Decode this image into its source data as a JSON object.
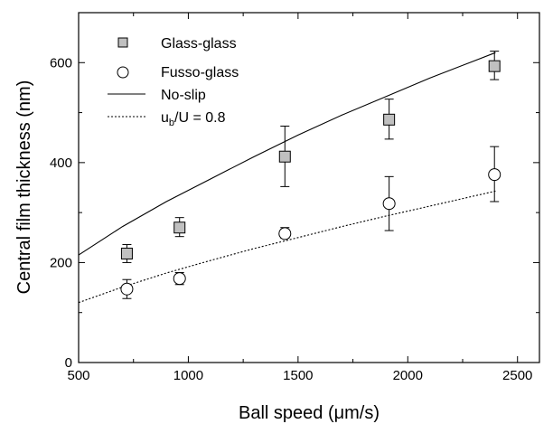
{
  "chart_data": {
    "type": "scatter",
    "xlabel": "Ball speed (μm/s)",
    "ylabel": "Central film thickness (nm)",
    "xlim": [
      500,
      2600
    ],
    "ylim": [
      0,
      700
    ],
    "x_ticks": [
      "500",
      "1000",
      "1500",
      "2000",
      "2500"
    ],
    "y_ticks": [
      "0",
      "200",
      "400",
      "600"
    ],
    "grid": false,
    "legend_position": "top-left",
    "series": [
      {
        "name": "Glass-glass",
        "kind": "scatter",
        "marker": "square",
        "color": "#c0c0c0",
        "points": [
          {
            "x": 720,
            "y": 218,
            "err_low": 200,
            "err_high": 236
          },
          {
            "x": 960,
            "y": 270,
            "err_low": 252,
            "err_high": 290
          },
          {
            "x": 1440,
            "y": 412,
            "err_low": 352,
            "err_high": 473
          },
          {
            "x": 1915,
            "y": 486,
            "err_low": 447,
            "err_high": 527
          },
          {
            "x": 2395,
            "y": 593,
            "err_low": 566,
            "err_high": 623
          }
        ]
      },
      {
        "name": "Fusso-glass",
        "kind": "scatter",
        "marker": "circle",
        "color": "#ffffff",
        "points": [
          {
            "x": 720,
            "y": 147,
            "err_low": 128,
            "err_high": 166
          },
          {
            "x": 960,
            "y": 168,
            "err_low": 156,
            "err_high": 180
          },
          {
            "x": 1440,
            "y": 258,
            "err_low": 249,
            "err_high": 270
          },
          {
            "x": 1915,
            "y": 318,
            "err_low": 264,
            "err_high": 372
          },
          {
            "x": 2395,
            "y": 376,
            "err_low": 322,
            "err_high": 432
          }
        ]
      },
      {
        "name": "No-slip",
        "kind": "line",
        "style": "solid",
        "x": [
          500,
          700,
          900,
          1100,
          1300,
          1500,
          1700,
          1900,
          2100,
          2300,
          2400
        ],
        "y": [
          215,
          272,
          322,
          367,
          412,
          455,
          495,
          532,
          569,
          603,
          620
        ]
      },
      {
        "name": "u_b/U = 0.8",
        "kind": "line",
        "style": "dotted",
        "x": [
          500,
          700,
          900,
          1100,
          1300,
          1500,
          1700,
          1900,
          2100,
          2300,
          2400
        ],
        "y": [
          120,
          151,
          179,
          204,
          228,
          250,
          272,
          293,
          313,
          333,
          343
        ]
      }
    ]
  },
  "legend": {
    "items": [
      {
        "label": "Glass-glass"
      },
      {
        "label": "Fusso-glass"
      },
      {
        "label": "No-slip"
      },
      {
        "label_main": "u",
        "label_sub": "b",
        "label_rest": "/U = 0.8"
      }
    ]
  }
}
